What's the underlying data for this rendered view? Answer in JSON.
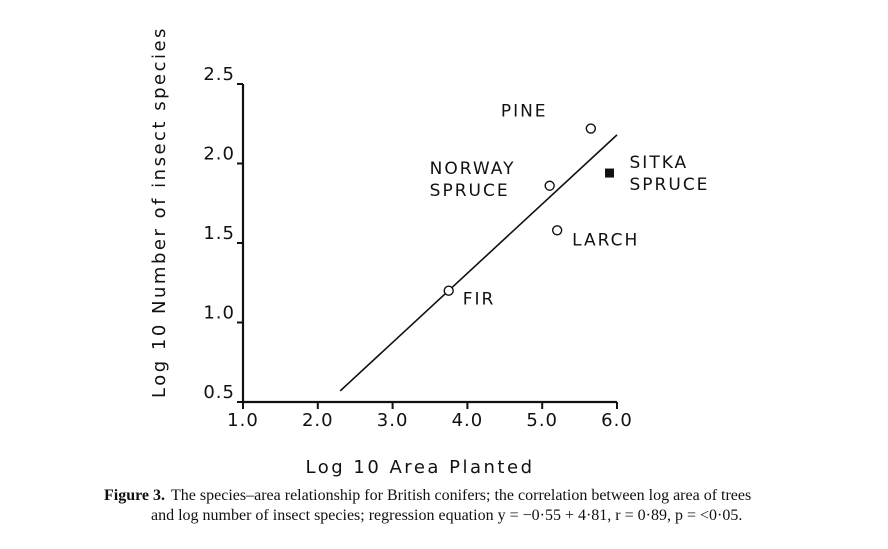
{
  "chart_data": {
    "type": "scatter",
    "title": "",
    "xlabel": "Log 10 Area Planted",
    "ylabel": "Log 10 Number of insect species",
    "xlim": [
      1.0,
      6.0
    ],
    "ylim": [
      0.5,
      2.5
    ],
    "x_ticks": [
      "1.0",
      "2.0",
      "3.0",
      "4.0",
      "5.0",
      "6.0"
    ],
    "y_ticks": [
      "0.5",
      "1.0",
      "1.5",
      "2.0",
      "2.5"
    ],
    "grid": false,
    "points": [
      {
        "label": [
          "PINE"
        ],
        "x": 5.65,
        "y": 2.22,
        "marker": "open-circle"
      },
      {
        "label": [
          "NORWAY",
          "SPRUCE"
        ],
        "x": 5.1,
        "y": 1.86,
        "marker": "open-circle"
      },
      {
        "label": [
          "SITKA",
          "SPRUCE"
        ],
        "x": 5.9,
        "y": 1.94,
        "marker": "filled-square"
      },
      {
        "label": [
          "LARCH"
        ],
        "x": 5.2,
        "y": 1.58,
        "marker": "open-circle"
      },
      {
        "label": [
          "FIR"
        ],
        "x": 3.75,
        "y": 1.2,
        "marker": "open-circle"
      }
    ],
    "regression_line": {
      "x": [
        2.3,
        6.0
      ],
      "y": [
        0.57,
        2.18
      ]
    }
  },
  "caption": {
    "figure_number": "Figure 3.",
    "line1": "The species–area relationship for British conifers; the correlation between log area of trees",
    "line2": "and log number of insect species; regression equation y = −0·55 + 4·81, r = 0·89, p = <0·05."
  }
}
